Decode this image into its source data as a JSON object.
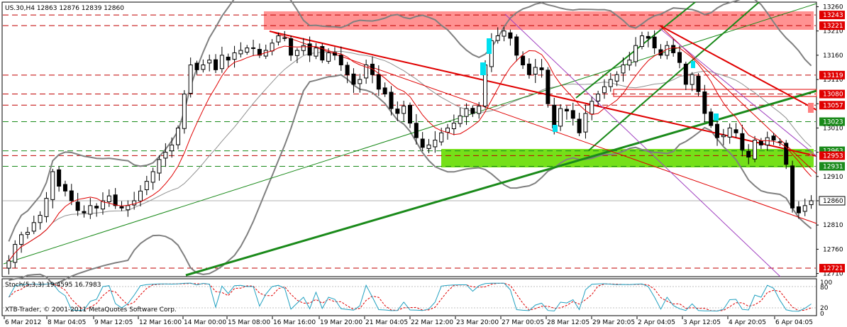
{
  "header": {
    "symbol_info": "US.30,H4  12863 12876 12839 12860"
  },
  "stoch": {
    "label": "Stoch(5,3,3) 19.4595 16.7983",
    "levels": [
      "100",
      "80",
      "20",
      "0"
    ]
  },
  "copyright": "XTB-Trader, © 2001-2011 MetaQuotes Software Corp.",
  "colors": {
    "background": "#ffffff",
    "bull_candle": "#ffffff",
    "bear_candle": "#000000",
    "bollinger": "#808080",
    "moving_average": "#e00000",
    "resistance_zone": "#ff6a6a",
    "support_zone": "#66dd00",
    "trend_green": "#1a8a1a",
    "trend_red": "#e00000",
    "channel_purple": "#a040c0",
    "highlight": "#00e0f0",
    "stoch_main": "#20a0c0",
    "stoch_signal": "#e00000",
    "price_tag_red": "#e00000",
    "current_price_tag": "#ffffff"
  },
  "chart_data": {
    "type": "candlestick",
    "symbol": "US.30",
    "timeframe": "H4",
    "ohlc_current": {
      "open": 12863,
      "high": 12876,
      "low": 12839,
      "close": 12860
    },
    "y_ticks": [
      13260,
      13210,
      13160,
      13110,
      13060,
      13010,
      12960,
      12910,
      12860,
      12810,
      12760,
      12710
    ],
    "ylim": [
      12705,
      13268
    ],
    "x_labels": [
      "6 Mar 2012",
      "8 Mar 04:05",
      "9 Mar 12:05",
      "12 Mar 16:00",
      "14 Mar 00:00",
      "15 Mar 08:00",
      "16 Mar 16:00",
      "19 Mar 20:00",
      "21 Mar 04:05",
      "22 Mar 12:00",
      "23 Mar 20:00",
      "27 Mar 00:05",
      "28 Mar 12:05",
      "29 Mar 20:05",
      "2 Apr 04:05",
      "3 Apr 12:05",
      "4 Apr 20:05",
      "6 Apr 04:05"
    ],
    "price_levels": [
      {
        "value": 13243,
        "label": "13243",
        "style": "red"
      },
      {
        "value": 13221,
        "label": "13221",
        "style": "red"
      },
      {
        "value": 13119,
        "label": "13119",
        "style": "red"
      },
      {
        "value": 13080,
        "label": "13080",
        "style": "red"
      },
      {
        "value": 13057,
        "label": "13057",
        "style": "red"
      },
      {
        "value": 13023,
        "label": "13023",
        "style": "green"
      },
      {
        "value": 12963,
        "label": "12963",
        "style": "green"
      },
      {
        "value": 12953,
        "label": "12953",
        "style": "red"
      },
      {
        "value": 12931,
        "label": "12931",
        "style": "green"
      },
      {
        "value": 12860,
        "label": "12860",
        "style": "current"
      },
      {
        "value": 12721,
        "label": "12721",
        "style": "red"
      }
    ],
    "zones": [
      {
        "name": "resistance",
        "from": 13210,
        "to": 13245
      },
      {
        "name": "support",
        "from": 12933,
        "to": 12965
      }
    ],
    "close": [
      12736,
      12770,
      12790,
      12795,
      12815,
      12830,
      12865,
      12920,
      12890,
      12880,
      12860,
      12840,
      12835,
      12850,
      12845,
      12860,
      12870,
      12850,
      12845,
      12850,
      12860,
      12880,
      12900,
      12920,
      12945,
      12960,
      12975,
      13010,
      13080,
      13140,
      13130,
      13140,
      13150,
      13130,
      13160,
      13150,
      13165,
      13170,
      13175,
      13175,
      13160,
      13170,
      13185,
      13200,
      13195,
      13160,
      13170,
      13180,
      13160,
      13175,
      13150,
      13165,
      13160,
      13140,
      13120,
      13100,
      13110,
      13140,
      13120,
      13090,
      13080,
      13050,
      13040,
      13055,
      13020,
      12990,
      12970,
      12975,
      12985,
      13000,
      13010,
      13020,
      13035,
      13050,
      13040,
      13055,
      13140,
      13190,
      13200,
      13210,
      13195,
      13160,
      13140,
      13120,
      13135,
      13130,
      13060,
      13010,
      13050,
      13045,
      13030,
      13000,
      13040,
      13065,
      13080,
      13095,
      13110,
      13120,
      13140,
      13150,
      13180,
      13200,
      13195,
      13175,
      13160,
      13180,
      13165,
      13145,
      13100,
      13120,
      13085,
      13040,
      13015,
      12990,
      12995,
      13010,
      13000,
      12965,
      12950,
      12985,
      12975,
      12990,
      12985,
      12980,
      12935,
      12845,
      12835,
      12850,
      12860
    ]
  }
}
